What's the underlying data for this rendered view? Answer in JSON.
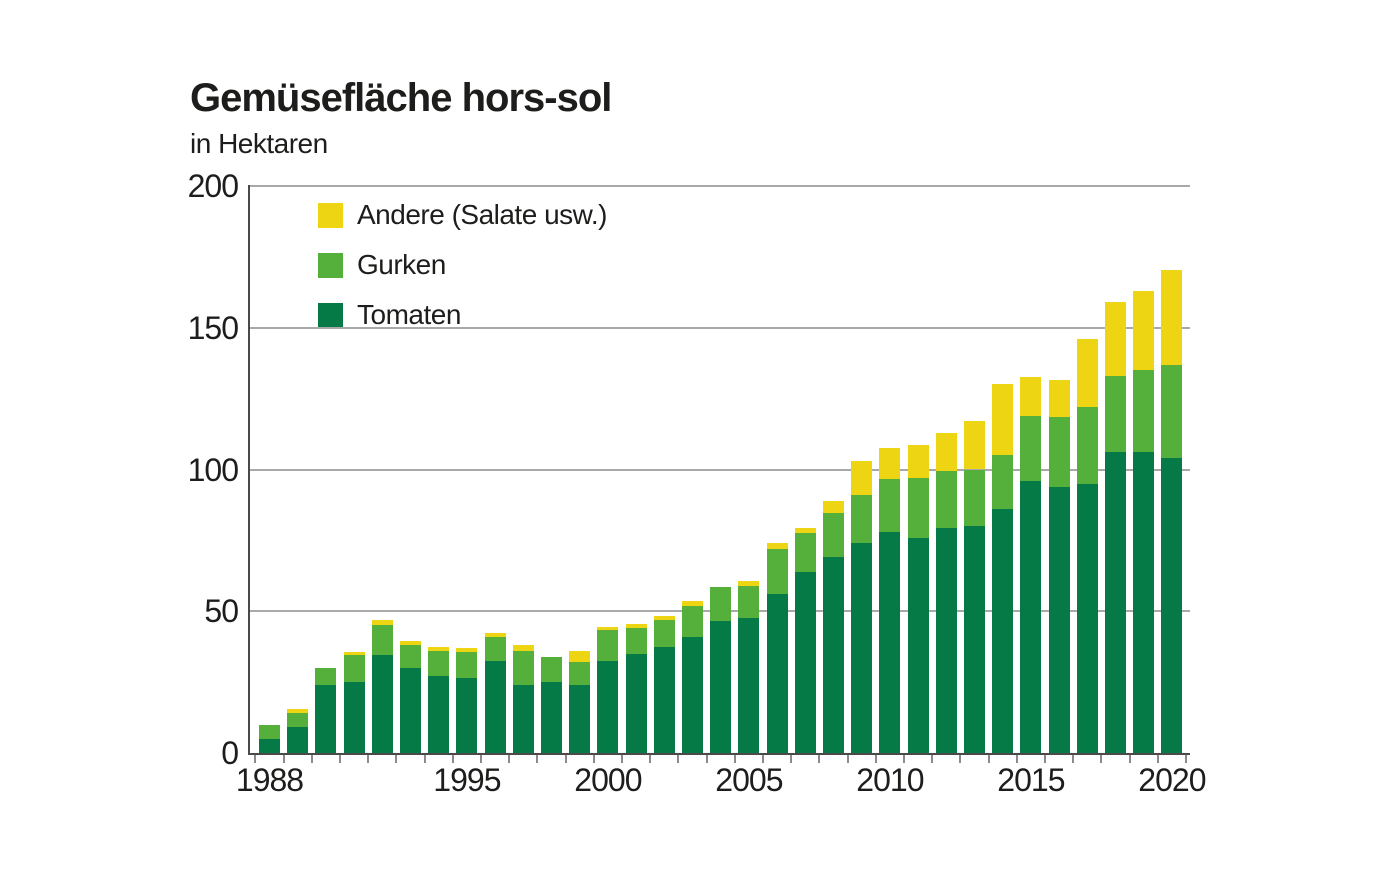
{
  "page": {
    "background": "#ffffff"
  },
  "colors": {
    "tomaten": "#057a47",
    "gurken": "#54b03b",
    "andere": "#eed513",
    "gridline": "#a9a9a9",
    "axis": "#4a4a4a",
    "text": "#1d1d1b"
  },
  "chart_data": {
    "type": "bar",
    "stacked": true,
    "title": "Gemüsefläche hors-sol",
    "subtitle": "in Hektaren",
    "unit": "Hektaren",
    "grid": true,
    "legend_position": "top-left-inside",
    "ylim": [
      0,
      200
    ],
    "yticks": [
      0,
      50,
      100,
      150,
      200
    ],
    "xtick_labels": [
      "1988",
      "1995",
      "2000",
      "2005",
      "2010",
      "2015",
      "2020"
    ],
    "categories": [
      1988,
      1989,
      1990,
      1991,
      1992,
      1993,
      1994,
      1995,
      1996,
      1997,
      1998,
      1999,
      2000,
      2001,
      2002,
      2003,
      2004,
      2005,
      2006,
      2007,
      2008,
      2009,
      2010,
      2011,
      2012,
      2013,
      2014,
      2015,
      2016,
      2017,
      2018,
      2019,
      2020
    ],
    "series": [
      {
        "name": "Tomaten",
        "color": "#057a47",
        "values": [
          5,
          9,
          24,
          25,
          34.5,
          30,
          27,
          26.5,
          32.5,
          24,
          25,
          24,
          32.5,
          35,
          37.5,
          41,
          46.5,
          47.5,
          56,
          64,
          69,
          74,
          78,
          76,
          79.5,
          80,
          86,
          96,
          94,
          95,
          106,
          106,
          104
        ]
      },
      {
        "name": "Gurken",
        "color": "#54b03b",
        "values": [
          5,
          5,
          6,
          9.5,
          10.5,
          8,
          9,
          9,
          8.5,
          12,
          9,
          8,
          11,
          9,
          9.5,
          11,
          12,
          11.5,
          16,
          13.5,
          15.5,
          17,
          18.5,
          21,
          20,
          20,
          19,
          23,
          24.5,
          27,
          27,
          29,
          33
        ]
      },
      {
        "name": "Andere (Salate usw.)",
        "color": "#eed513",
        "values": [
          0,
          1.5,
          0,
          1,
          2,
          1.5,
          1.5,
          1.5,
          1.5,
          2,
          0,
          4,
          1,
          1.5,
          1.5,
          1.5,
          0,
          1.5,
          2,
          2,
          4.5,
          12,
          11,
          11.5,
          13.5,
          17,
          25,
          13.5,
          13,
          24,
          26,
          28,
          33.5
        ]
      }
    ],
    "legend": [
      {
        "label": "Andere (Salate usw.)",
        "color": "#eed513"
      },
      {
        "label": "Gurken",
        "color": "#54b03b"
      },
      {
        "label": "Tomaten",
        "color": "#057a47"
      }
    ]
  }
}
